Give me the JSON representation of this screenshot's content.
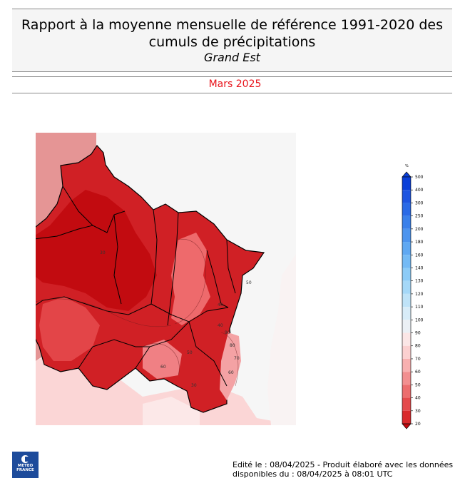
{
  "header": {
    "title_line1": "Rapport à la moyenne mensuelle de référence 1991-2020 des",
    "title_line2": "cumuls de précipitations",
    "region": "Grand Est"
  },
  "period": "Mars 2025",
  "legend": {
    "unit": "%",
    "levels": [
      {
        "value": "500",
        "color": "#0a3fd8"
      },
      {
        "value": "400",
        "color": "#1e55e0"
      },
      {
        "value": "300",
        "color": "#2a6ae6"
      },
      {
        "value": "250",
        "color": "#3a80ea"
      },
      {
        "value": "200",
        "color": "#4c94ee"
      },
      {
        "value": "180",
        "color": "#5fa8f2"
      },
      {
        "value": "160",
        "color": "#74baf5"
      },
      {
        "value": "140",
        "color": "#8ccbf7"
      },
      {
        "value": "130",
        "color": "#a5d8f8"
      },
      {
        "value": "120",
        "color": "#bfe3f8"
      },
      {
        "value": "110",
        "color": "#d8ecf8"
      },
      {
        "value": "100",
        "color": "#ebf0f5"
      },
      {
        "value": "90",
        "color": "#fbe6e6"
      },
      {
        "value": "80",
        "color": "#fbd0d0"
      },
      {
        "value": "70",
        "color": "#f8b0b0"
      },
      {
        "value": "60",
        "color": "#f28f90"
      },
      {
        "value": "50",
        "color": "#ec6d6e"
      },
      {
        "value": "40",
        "color": "#e44a4c"
      },
      {
        "value": "30",
        "color": "#d92a2d"
      },
      {
        "value": "20",
        "color": "#c4090e"
      }
    ]
  },
  "map_contour_labels": [
    "90",
    "80",
    "70",
    "60",
    "50",
    "40",
    "30",
    "50",
    "60",
    "40",
    "30"
  ],
  "footer": {
    "line1": "Edité le : 08/04/2025 - Produit élaboré avec les données",
    "line2": "disponibles du : 08/04/2025 à 08:01 UTC"
  },
  "logo": {
    "line1": "METEO",
    "line2": "FRANCE"
  }
}
